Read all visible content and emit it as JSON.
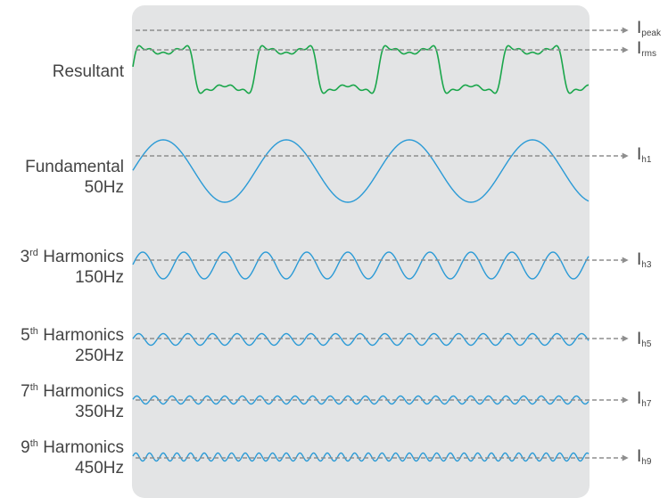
{
  "colors": {
    "panel": "#e3e4e5",
    "resultant_wave": "#1aa64b",
    "harmonic_wave": "#2a9ad6",
    "reference_arrow": "#8e8e8e",
    "text": "#444444"
  },
  "rows": [
    {
      "id": "resultant",
      "label": "Resultant",
      "freq": "",
      "sup": "",
      "harmonic_order": "mixed",
      "relative_amplitude": 1.0
    },
    {
      "id": "fundamental",
      "label": "Fundamental",
      "freq": "50Hz",
      "sup": "",
      "harmonic_order": 1,
      "relative_amplitude": 1.0
    },
    {
      "id": "h3",
      "prefix": "3",
      "sup": "rd",
      "label": " Harmonics",
      "freq": "150Hz",
      "harmonic_order": 3,
      "relative_amplitude": 0.45
    },
    {
      "id": "h5",
      "prefix": "5",
      "sup": "th",
      "label": " Harmonics",
      "freq": "250Hz",
      "harmonic_order": 5,
      "relative_amplitude": 0.2
    },
    {
      "id": "h7",
      "prefix": "7",
      "sup": "th",
      "label": " Harmonics",
      "freq": "350Hz",
      "harmonic_order": 7,
      "relative_amplitude": 0.12
    },
    {
      "id": "h9",
      "prefix": "9",
      "sup": "th",
      "label": " Harmonics",
      "freq": "450Hz",
      "harmonic_order": 9,
      "relative_amplitude": 0.1
    }
  ],
  "right_labels": [
    {
      "id": "ipeak",
      "base": "I",
      "sub": "peak"
    },
    {
      "id": "irms",
      "base": "I",
      "sub": "rms"
    },
    {
      "id": "ih1",
      "base": "I",
      "sub": "h1"
    },
    {
      "id": "ih3",
      "base": "I",
      "sub": "h3"
    },
    {
      "id": "ih5",
      "base": "I",
      "sub": "h5"
    },
    {
      "id": "ih7",
      "base": "I",
      "sub": "h7"
    },
    {
      "id": "ih9",
      "base": "I",
      "sub": "h9"
    }
  ]
}
